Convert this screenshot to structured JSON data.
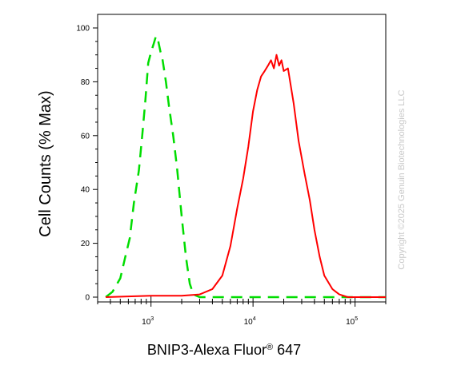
{
  "chart_data": {
    "type": "line",
    "title": "",
    "xlabel": "BNIP3-Alexa Fluor",
    "xlabel_reg": "®",
    "xlabel_tail": " 647",
    "ylabel": "Cell Counts (% Max)",
    "x_scale": "log",
    "xlim": [
      300,
      200000
    ],
    "ylim": [
      0,
      100
    ],
    "x_ticks": [
      {
        "base": "10",
        "exp": "3",
        "value": 1000
      },
      {
        "base": "10",
        "exp": "4",
        "value": 10000
      },
      {
        "base": "10",
        "exp": "5",
        "value": 100000
      }
    ],
    "y_ticks": [
      "0",
      "20",
      "40",
      "60",
      "80",
      "100"
    ],
    "grid": false,
    "legend": "none",
    "series": [
      {
        "color": "#00dd00",
        "style": "dashed",
        "x": [
          360,
          420,
          500,
          560,
          620,
          680,
          760,
          820,
          880,
          940,
          1000,
          1060,
          1120,
          1180,
          1240,
          1300,
          1400,
          1500,
          1650,
          1800,
          2000,
          2200,
          2400,
          2600,
          3000,
          4000,
          6000,
          10000,
          20000,
          50000,
          100000,
          200000
        ],
        "y": [
          0,
          2,
          7,
          15,
          22,
          35,
          47,
          60,
          73,
          87,
          91,
          94,
          97,
          95,
          91,
          88,
          80,
          71,
          60,
          48,
          30,
          15,
          5,
          1,
          0,
          0,
          0,
          0,
          0,
          0,
          0,
          0
        ]
      },
      {
        "color": "#ff0000",
        "style": "solid",
        "x": [
          360,
          1000,
          2000,
          3000,
          4000,
          5000,
          6000,
          7000,
          8000,
          9000,
          10000,
          11000,
          12000,
          13000,
          14000,
          15000,
          16000,
          17000,
          18000,
          19000,
          20000,
          22000,
          25000,
          28000,
          32000,
          36000,
          40000,
          45000,
          50000,
          60000,
          70000,
          85000,
          100000,
          130000,
          200000
        ],
        "y": [
          0,
          0.5,
          0.5,
          1,
          3,
          8,
          19,
          33,
          44,
          56,
          69,
          77,
          82,
          84,
          86,
          88,
          85,
          90,
          86,
          88,
          84,
          85,
          72,
          58,
          46,
          36,
          25,
          15,
          8,
          3,
          1,
          0,
          0,
          0,
          0
        ]
      }
    ]
  },
  "watermark": "Copyright ©2025 Genuin Biotechnologies LLC"
}
